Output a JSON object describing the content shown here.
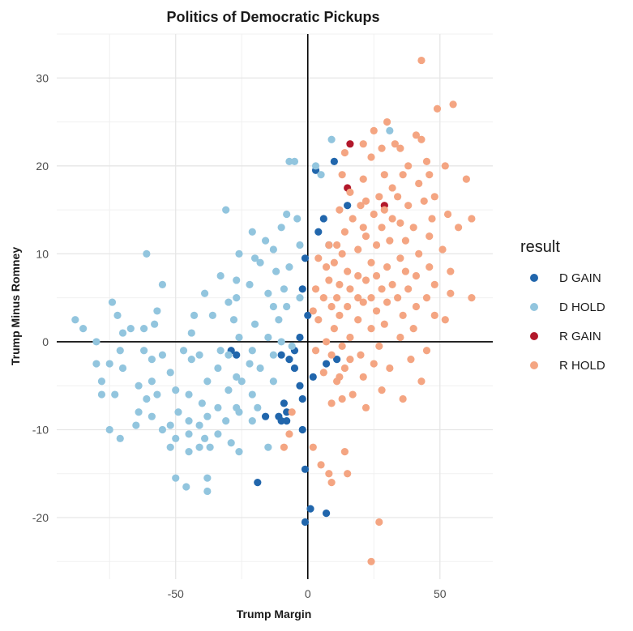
{
  "chart_data": {
    "type": "scatter",
    "title": "Politics of Democratic Pickups",
    "xlabel": "Trump Margin",
    "ylabel": "Trump Minus Romney",
    "xlim": [
      -95,
      70
    ],
    "ylim": [
      -27,
      35
    ],
    "x_ticks": [
      -50,
      0,
      50
    ],
    "x_tick_labels": [
      "-50",
      "0",
      "50"
    ],
    "y_ticks": [
      -20,
      -10,
      0,
      10,
      20,
      30
    ],
    "y_tick_labels": [
      "-20",
      "-10",
      "0",
      "10",
      "20",
      "30"
    ],
    "grid": true,
    "reference_lines": {
      "x": 0,
      "y": 0
    },
    "legend": {
      "title": "result",
      "position": "right",
      "entries": [
        {
          "label": "D GAIN",
          "color": "#2166ac"
        },
        {
          "label": "D HOLD",
          "color": "#92c5de"
        },
        {
          "label": "R GAIN",
          "color": "#b2182b"
        },
        {
          "label": "R HOLD",
          "color": "#f4a582"
        }
      ]
    },
    "series": [
      {
        "name": "D GAIN",
        "color": "#2166ac",
        "points": [
          [
            3,
            19.5
          ],
          [
            10,
            20.5
          ],
          [
            15,
            15.5
          ],
          [
            6,
            14
          ],
          [
            4,
            12.5
          ],
          [
            8,
            11
          ],
          [
            -1,
            9.5
          ],
          [
            -2,
            6
          ],
          [
            0,
            3
          ],
          [
            -3,
            0.5
          ],
          [
            -5,
            -1
          ],
          [
            -29,
            -1
          ],
          [
            -27,
            -1.5
          ],
          [
            -10,
            -1.5
          ],
          [
            -7,
            -2
          ],
          [
            7,
            -2.5
          ],
          [
            -5,
            -3
          ],
          [
            2,
            -4
          ],
          [
            -3,
            -5
          ],
          [
            -2,
            -6.5
          ],
          [
            -9,
            -7
          ],
          [
            -8,
            -8
          ],
          [
            -16,
            -8.5
          ],
          [
            -11,
            -8.5
          ],
          [
            -10,
            -9
          ],
          [
            -8,
            -9
          ],
          [
            -2,
            -10
          ],
          [
            -1,
            -14.5
          ],
          [
            -19,
            -16
          ],
          [
            1,
            -19
          ],
          [
            7,
            -19.5
          ],
          [
            -1,
            -20.5
          ],
          [
            11,
            -2
          ]
        ]
      },
      {
        "name": "D HOLD",
        "color": "#92c5de",
        "points": [
          [
            31,
            24
          ],
          [
            9,
            23
          ],
          [
            -7,
            20.5
          ],
          [
            -5,
            20.5
          ],
          [
            3,
            20
          ],
          [
            5,
            19
          ],
          [
            -31,
            15
          ],
          [
            -8,
            14.5
          ],
          [
            -4,
            14
          ],
          [
            -10,
            13
          ],
          [
            -21,
            12.5
          ],
          [
            -16,
            11.5
          ],
          [
            -3,
            11
          ],
          [
            -13,
            10.5
          ],
          [
            -26,
            10
          ],
          [
            -20,
            9.5
          ],
          [
            -61,
            10
          ],
          [
            -18,
            9
          ],
          [
            -7,
            8.5
          ],
          [
            -12,
            8
          ],
          [
            -33,
            7.5
          ],
          [
            -27,
            7
          ],
          [
            -22,
            6.5
          ],
          [
            -9,
            6
          ],
          [
            -15,
            5.5
          ],
          [
            -3,
            5
          ],
          [
            -55,
            6.5
          ],
          [
            -27,
            5
          ],
          [
            -30,
            4.5
          ],
          [
            -13,
            4
          ],
          [
            -8,
            4
          ],
          [
            -39,
            5.5
          ],
          [
            -43,
            3
          ],
          [
            -74,
            4.5
          ],
          [
            -72,
            3
          ],
          [
            -57,
            3.5
          ],
          [
            -36,
            3
          ],
          [
            -28,
            2.5
          ],
          [
            -11,
            2.5
          ],
          [
            -58,
            2
          ],
          [
            -67,
            1.5
          ],
          [
            -20,
            2
          ],
          [
            -62,
            1.5
          ],
          [
            -88,
            2.5
          ],
          [
            -85,
            1.5
          ],
          [
            -80,
            0
          ],
          [
            -70,
            1
          ],
          [
            -44,
            1
          ],
          [
            -26,
            0.5
          ],
          [
            -15,
            0.5
          ],
          [
            -10,
            0
          ],
          [
            -6,
            -0.5
          ],
          [
            -21,
            -1
          ],
          [
            -33,
            -1
          ],
          [
            -71,
            -1
          ],
          [
            -47,
            -1
          ],
          [
            -62,
            -1
          ],
          [
            -30,
            -1.5
          ],
          [
            -13,
            -1.5
          ],
          [
            -55,
            -1.5
          ],
          [
            -41,
            -1.5
          ],
          [
            -59,
            -2
          ],
          [
            -80,
            -2.5
          ],
          [
            -44,
            -2
          ],
          [
            -22,
            -2.5
          ],
          [
            -75,
            -2.5
          ],
          [
            -34,
            -3
          ],
          [
            -18,
            -3
          ],
          [
            -70,
            -3
          ],
          [
            -52,
            -3.5
          ],
          [
            -27,
            -4
          ],
          [
            -78,
            -4.5
          ],
          [
            -59,
            -4.5
          ],
          [
            -38,
            -4.5
          ],
          [
            -25,
            -4.5
          ],
          [
            -13,
            -4.5
          ],
          [
            -64,
            -5
          ],
          [
            -50,
            -5.5
          ],
          [
            -30,
            -5.5
          ],
          [
            -73,
            -6
          ],
          [
            -57,
            -6
          ],
          [
            -45,
            -6
          ],
          [
            -21,
            -6
          ],
          [
            -78,
            -6
          ],
          [
            -61,
            -6.5
          ],
          [
            -40,
            -7
          ],
          [
            -34,
            -7.5
          ],
          [
            -27,
            -7.5
          ],
          [
            -19,
            -7.5
          ],
          [
            -64,
            -8
          ],
          [
            -49,
            -8
          ],
          [
            -38,
            -8.5
          ],
          [
            -26,
            -8
          ],
          [
            -59,
            -8.5
          ],
          [
            -45,
            -9
          ],
          [
            -31,
            -9
          ],
          [
            -21,
            -9
          ],
          [
            -65,
            -9.5
          ],
          [
            -52,
            -9.5
          ],
          [
            -41,
            -9.5
          ],
          [
            -75,
            -10
          ],
          [
            -55,
            -10
          ],
          [
            -45,
            -10.5
          ],
          [
            -34,
            -10.5
          ],
          [
            -50,
            -11
          ],
          [
            -39,
            -11
          ],
          [
            -71,
            -11
          ],
          [
            -29,
            -11.5
          ],
          [
            -41,
            -12
          ],
          [
            -15,
            -12
          ],
          [
            -52,
            -12
          ],
          [
            -37,
            -12
          ],
          [
            -45,
            -12.5
          ],
          [
            -26,
            -12.5
          ],
          [
            -50,
            -15.5
          ],
          [
            -38,
            -15.5
          ],
          [
            -46,
            -16.5
          ],
          [
            -38,
            -17
          ]
        ]
      },
      {
        "name": "R GAIN",
        "color": "#b2182b",
        "points": [
          [
            16,
            22.5
          ],
          [
            15,
            17.5
          ],
          [
            29,
            15.5
          ]
        ]
      },
      {
        "name": "R HOLD",
        "color": "#f4a582",
        "points": [
          [
            43,
            32
          ],
          [
            55,
            27
          ],
          [
            49,
            26.5
          ],
          [
            30,
            25
          ],
          [
            25,
            24
          ],
          [
            21,
            22.5
          ],
          [
            41,
            23.5
          ],
          [
            43,
            23
          ],
          [
            33,
            22.5
          ],
          [
            28,
            22
          ],
          [
            35,
            22
          ],
          [
            24,
            21
          ],
          [
            14,
            21.5
          ],
          [
            45,
            20.5
          ],
          [
            38,
            20
          ],
          [
            52,
            20
          ],
          [
            36,
            19
          ],
          [
            46,
            19
          ],
          [
            13,
            19
          ],
          [
            29,
            19
          ],
          [
            21,
            18.5
          ],
          [
            60,
            18.5
          ],
          [
            42,
            18
          ],
          [
            32,
            17.5
          ],
          [
            16,
            17
          ],
          [
            22,
            16
          ],
          [
            34,
            16.5
          ],
          [
            27,
            16.5
          ],
          [
            48,
            16.5
          ],
          [
            44,
            16
          ],
          [
            20,
            15.5
          ],
          [
            12,
            15
          ],
          [
            38,
            15.5
          ],
          [
            29,
            15
          ],
          [
            25,
            14.5
          ],
          [
            53,
            14.5
          ],
          [
            17,
            14
          ],
          [
            32,
            14
          ],
          [
            47,
            14
          ],
          [
            35,
            13.5
          ],
          [
            62,
            14
          ],
          [
            21,
            13
          ],
          [
            28,
            13
          ],
          [
            40,
            13
          ],
          [
            57,
            13
          ],
          [
            14,
            12.5
          ],
          [
            22,
            12
          ],
          [
            46,
            12
          ],
          [
            31,
            11.5
          ],
          [
            8,
            11
          ],
          [
            11,
            11
          ],
          [
            26,
            11
          ],
          [
            37,
            11.5
          ],
          [
            19,
            10.5
          ],
          [
            51,
            10.5
          ],
          [
            42,
            10
          ],
          [
            13,
            10
          ],
          [
            35,
            9.5
          ],
          [
            4,
            9.5
          ],
          [
            10,
            9
          ],
          [
            7,
            8.5
          ],
          [
            24,
            9
          ],
          [
            46,
            8.5
          ],
          [
            30,
            8.5
          ],
          [
            15,
            8
          ],
          [
            37,
            8
          ],
          [
            54,
            8
          ],
          [
            19,
            7.5
          ],
          [
            26,
            7.5
          ],
          [
            41,
            7.5
          ],
          [
            8,
            7
          ],
          [
            32,
            6.5
          ],
          [
            12,
            6.5
          ],
          [
            22,
            7
          ],
          [
            48,
            6.5
          ],
          [
            3,
            6
          ],
          [
            28,
            6
          ],
          [
            16,
            6
          ],
          [
            38,
            6
          ],
          [
            54,
            5.5
          ],
          [
            6,
            5
          ],
          [
            11,
            5
          ],
          [
            19,
            5
          ],
          [
            24,
            5
          ],
          [
            34,
            5
          ],
          [
            45,
            5
          ],
          [
            62,
            5
          ],
          [
            9,
            4
          ],
          [
            15,
            4
          ],
          [
            21,
            4.5
          ],
          [
            30,
            4.5
          ],
          [
            41,
            4
          ],
          [
            2,
            3.5
          ],
          [
            12,
            3
          ],
          [
            26,
            3.5
          ],
          [
            36,
            3
          ],
          [
            48,
            3
          ],
          [
            19,
            2.5
          ],
          [
            4,
            2.5
          ],
          [
            29,
            2
          ],
          [
            52,
            2.5
          ],
          [
            10,
            1.5
          ],
          [
            24,
            1.5
          ],
          [
            40,
            1.5
          ],
          [
            16,
            0.5
          ],
          [
            35,
            0.5
          ],
          [
            7,
            0
          ],
          [
            13,
            -0.5
          ],
          [
            27,
            -0.5
          ],
          [
            3,
            -1
          ],
          [
            20,
            -1.5
          ],
          [
            45,
            -1
          ],
          [
            9,
            -1.5
          ],
          [
            16,
            -2
          ],
          [
            25,
            -2.5
          ],
          [
            39,
            -2
          ],
          [
            14,
            -3
          ],
          [
            31,
            -3
          ],
          [
            6,
            -3.5
          ],
          [
            21,
            -4
          ],
          [
            11,
            -4.5
          ],
          [
            43,
            -4.5
          ],
          [
            28,
            -5.5
          ],
          [
            17,
            -6
          ],
          [
            13,
            -6.5
          ],
          [
            9,
            -7
          ],
          [
            36,
            -6.5
          ],
          [
            22,
            -7.5
          ],
          [
            -6,
            -8
          ],
          [
            -7,
            -10.5
          ],
          [
            -9,
            -12
          ],
          [
            2,
            -12
          ],
          [
            14,
            -12.5
          ],
          [
            5,
            -14
          ],
          [
            8,
            -15
          ],
          [
            15,
            -15
          ],
          [
            9,
            -16
          ],
          [
            27,
            -20.5
          ],
          [
            24,
            -25
          ],
          [
            12,
            -4
          ]
        ]
      }
    ]
  }
}
